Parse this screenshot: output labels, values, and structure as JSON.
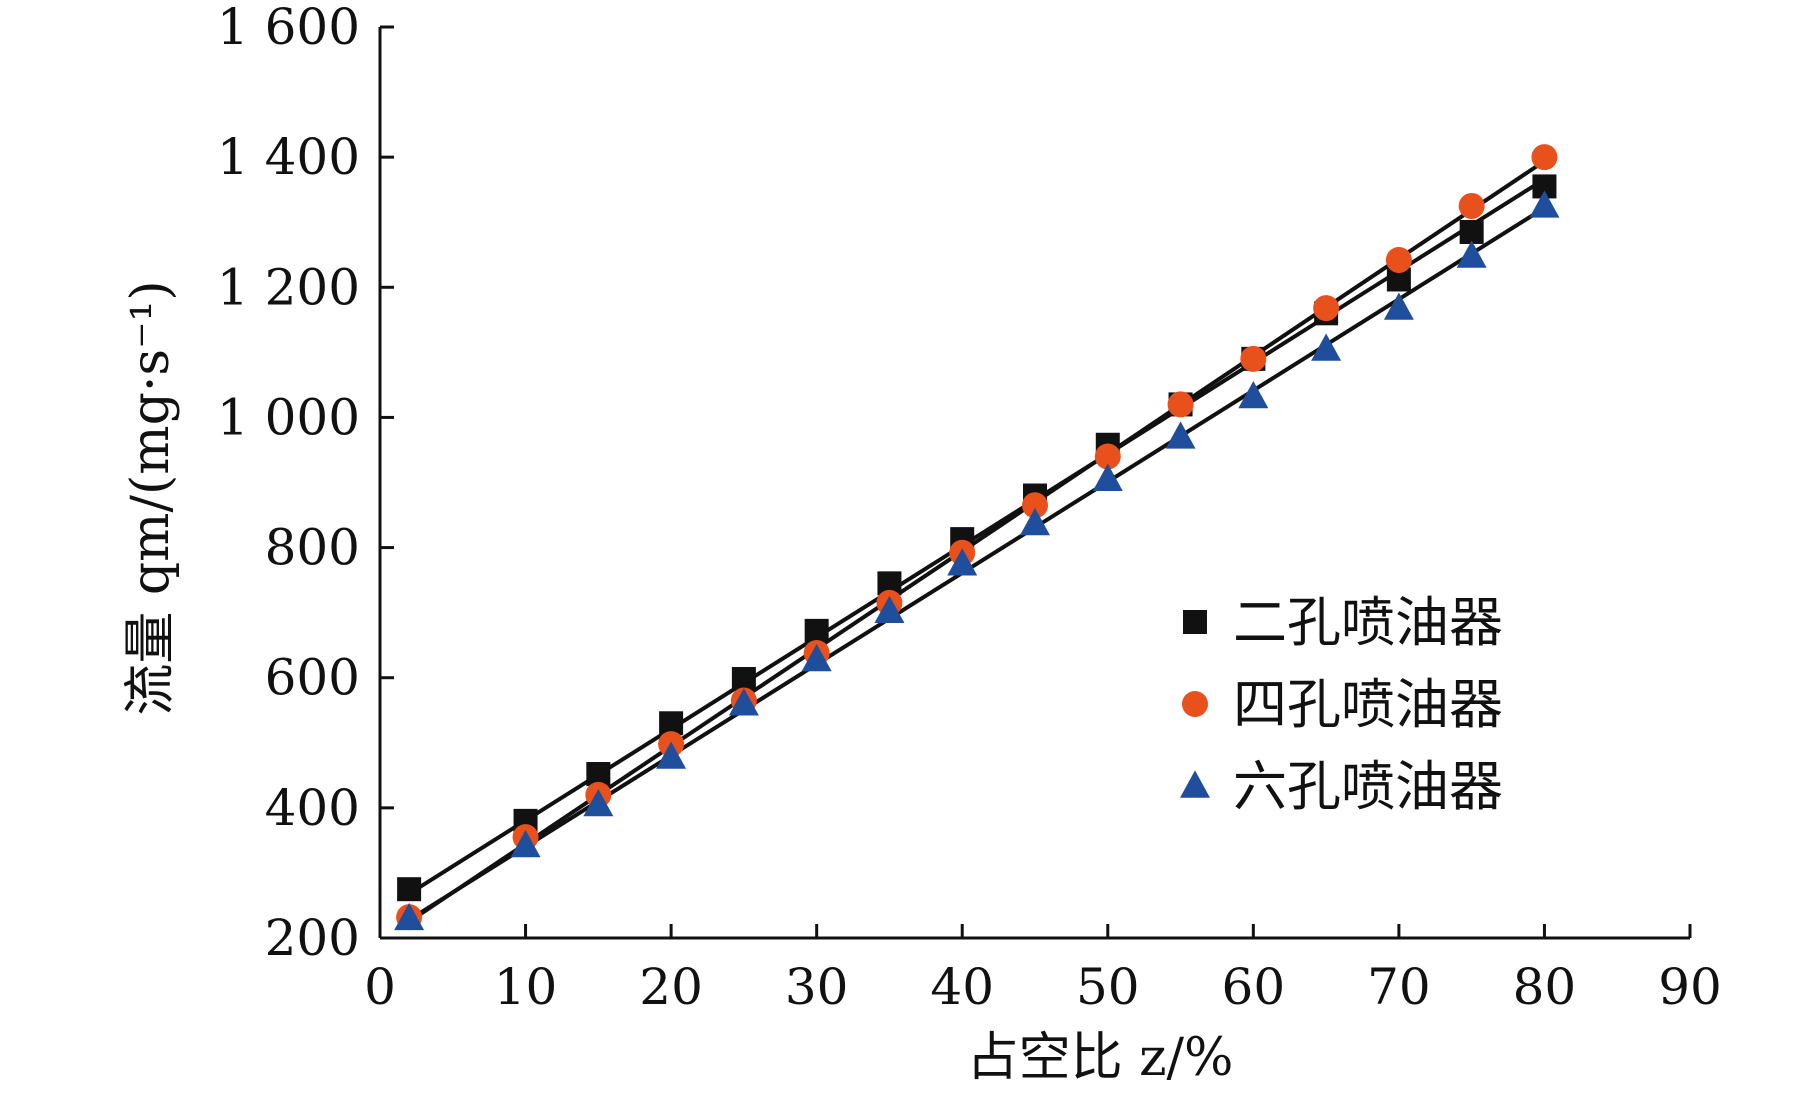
{
  "chart_data": {
    "type": "scatter",
    "xlabel": "占空比 z/%",
    "ylabel": "流量 qm/(mg·s⁻¹)",
    "xlim": [
      0,
      90
    ],
    "ylim": [
      200,
      1600
    ],
    "x_ticks": [
      0,
      10,
      20,
      30,
      40,
      50,
      60,
      70,
      80,
      90
    ],
    "y_ticks": [
      200,
      400,
      600,
      800,
      1000,
      1200,
      1400,
      1600
    ],
    "y_tick_labels": [
      "200",
      "400",
      "600",
      "800",
      "1 000",
      "1 200",
      "1 400",
      "1 600"
    ],
    "x": [
      2,
      10,
      15,
      20,
      25,
      30,
      35,
      40,
      45,
      50,
      55,
      60,
      65,
      70,
      75,
      80
    ],
    "legend_position": "right-middle",
    "grid": false,
    "series": [
      {
        "name": "二孔喷油器",
        "marker": "square",
        "color": "#111111",
        "values": [
          275,
          380,
          452,
          530,
          598,
          672,
          745,
          813,
          880,
          958,
          1020,
          1090,
          1160,
          1212,
          1285,
          1355
        ],
        "fit": [
          [
            2,
            268
          ],
          [
            80,
            1366
          ]
        ]
      },
      {
        "name": "四孔喷油器",
        "marker": "circle",
        "color": "#e8501c",
        "values": [
          232,
          355,
          420,
          498,
          565,
          638,
          715,
          792,
          865,
          940,
          1020,
          1090,
          1168,
          1242,
          1325,
          1400
        ],
        "fit": [
          [
            2,
            225
          ],
          [
            80,
            1394
          ]
        ]
      },
      {
        "name": "六孔喷油器",
        "marker": "triangle",
        "color": "#1f4e9c",
        "values": [
          230,
          342,
          405,
          478,
          560,
          628,
          702,
          775,
          837,
          905,
          970,
          1032,
          1105,
          1168,
          1248,
          1325
        ],
        "fit": [
          [
            2,
            228
          ],
          [
            80,
            1322
          ]
        ]
      }
    ]
  }
}
